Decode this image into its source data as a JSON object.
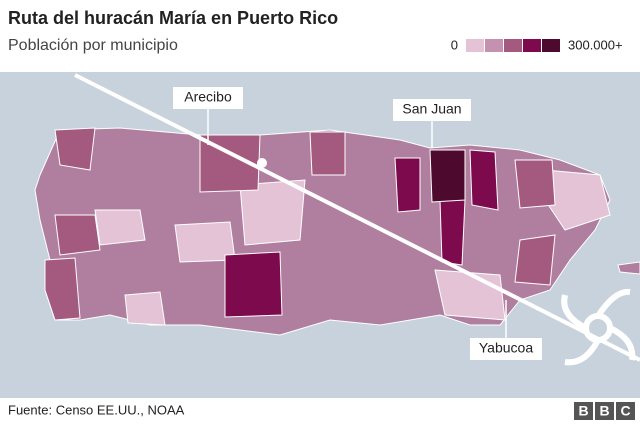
{
  "header": {
    "title": "Ruta del huracán María en Puerto Rico",
    "subtitle": "Población por municipio"
  },
  "legend": {
    "min_label": "0",
    "max_label": "300.000+",
    "colors": [
      "#e3c3d5",
      "#c491b0",
      "#a4597f",
      "#7d0a4d",
      "#4e0a2e"
    ]
  },
  "map": {
    "labels": [
      "Arecibo",
      "San Juan",
      "Yabucoa"
    ]
  },
  "footer": {
    "source": "Fuente: Censo EE.UU., NOAA",
    "logo": [
      "B",
      "B",
      "C"
    ]
  }
}
